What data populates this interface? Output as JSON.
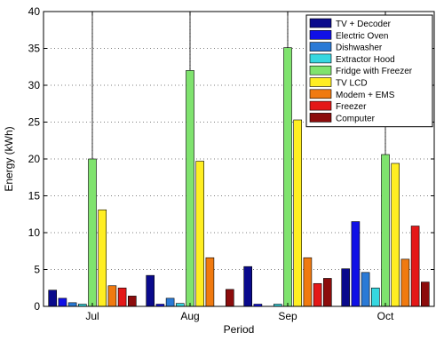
{
  "chart_data": {
    "type": "bar",
    "xlabel": "Period",
    "ylabel": "Energy (kWh)",
    "categories": [
      "Jul",
      "Aug",
      "Sep",
      "Oct"
    ],
    "ylim": [
      0,
      40
    ],
    "yticks": [
      0,
      5,
      10,
      15,
      20,
      25,
      30,
      35,
      40
    ],
    "grid": true,
    "legend_position": "top-right",
    "series": [
      {
        "name": "TV + Decoder",
        "color": "#0a0a8c",
        "values": [
          2.2,
          4.2,
          5.4,
          5.1
        ]
      },
      {
        "name": "Electric Oven",
        "color": "#1010e6",
        "values": [
          1.1,
          0.3,
          0.3,
          11.5
        ]
      },
      {
        "name": "Dishwasher",
        "color": "#2a7ad6",
        "values": [
          0.5,
          1.1,
          0.0,
          4.6
        ]
      },
      {
        "name": "Extractor Hood",
        "color": "#36d7e0",
        "values": [
          0.3,
          0.4,
          0.3,
          2.5
        ]
      },
      {
        "name": "Fridge with Freezer",
        "color": "#7fe36e",
        "values": [
          20.0,
          32.0,
          35.1,
          20.6
        ]
      },
      {
        "name": "TV LCD",
        "color": "#ffee22",
        "values": [
          13.1,
          19.7,
          25.3,
          19.4
        ]
      },
      {
        "name": "Modem + EMS",
        "color": "#f07a10",
        "values": [
          2.8,
          6.6,
          6.6,
          6.4
        ]
      },
      {
        "name": "Freezer",
        "color": "#e41818",
        "values": [
          2.5,
          0.0,
          3.1,
          10.9
        ]
      },
      {
        "name": "Computer",
        "color": "#8c0c0c",
        "values": [
          1.4,
          2.3,
          3.8,
          3.3
        ]
      }
    ]
  }
}
